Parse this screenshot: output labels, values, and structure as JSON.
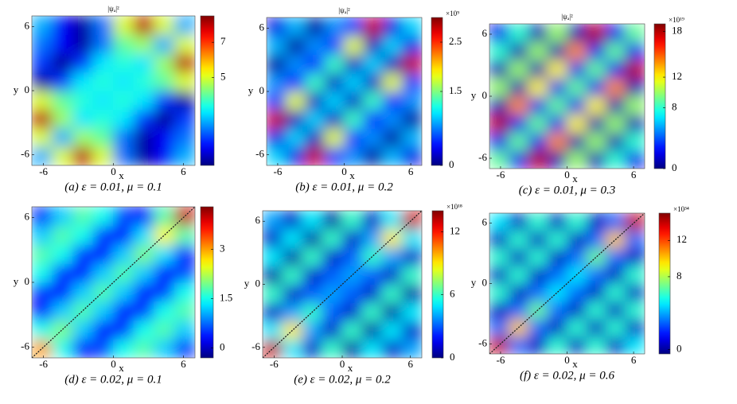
{
  "chart_data": [
    {
      "type": "heatmap",
      "title": "|ψₐ|²",
      "caption": "(a) ε = 0.01,  μ = 0.1",
      "xlabel": "x",
      "ylabel": "y",
      "xlim": [
        -7,
        7
      ],
      "ylim": [
        -7,
        7
      ],
      "xticks": [
        -6,
        0,
        6
      ],
      "yticks": [
        -6,
        0,
        6
      ],
      "colormap": "jet",
      "clim": [
        0,
        8.5
      ],
      "cticks": [
        5,
        7
      ],
      "z": [
        [
          2.5,
          5,
          8,
          5,
          2,
          0.3,
          1,
          2.5
        ],
        [
          5,
          2.5,
          4.5,
          4,
          2,
          0.3,
          1,
          2
        ],
        [
          8,
          4.5,
          3,
          3.5,
          3,
          1.5,
          0.2,
          1.5
        ],
        [
          5,
          4,
          3.5,
          3,
          3.5,
          3,
          1.5,
          0.3
        ],
        [
          0.3,
          1.5,
          3,
          3.5,
          3,
          3.5,
          4,
          5
        ],
        [
          1.5,
          0.2,
          1.5,
          3,
          3.5,
          3,
          4.5,
          8
        ],
        [
          2,
          1,
          0.3,
          2,
          4,
          4.5,
          2.5,
          5
        ],
        [
          2.5,
          1,
          0.3,
          2,
          5,
          8,
          5,
          2.5
        ]
      ]
    },
    {
      "type": "heatmap",
      "title": "|ψₐ|²",
      "caption": "(b) ε = 0.01,  μ = 0.2",
      "xlabel": "x",
      "ylabel": "y",
      "xlim": [
        -7,
        7
      ],
      "ylim": [
        -7,
        7
      ],
      "xticks": [
        -6,
        0,
        6
      ],
      "yticks": [
        -6,
        0,
        6
      ],
      "colormap": "jet",
      "clim": [
        0,
        3
      ],
      "cticks": [
        0,
        1.5,
        2.5
      ],
      "cbar_label": "×10⁹",
      "z": [
        [
          1.0,
          0.3,
          2.8,
          0.5,
          0.8,
          0.1,
          0.9,
          0.3
        ],
        [
          0.3,
          1.0,
          0.2,
          1.8,
          0.5,
          0.8,
          0.1,
          0.9
        ],
        [
          2.8,
          0.2,
          1.0,
          0.2,
          1.3,
          0.4,
          0.8,
          0.1
        ],
        [
          0.5,
          1.8,
          0.2,
          1.0,
          0.2,
          1.3,
          0.4,
          0.8
        ],
        [
          0.8,
          0.4,
          1.3,
          0.2,
          1.0,
          0.2,
          1.8,
          0.5
        ],
        [
          0.1,
          0.8,
          0.4,
          1.3,
          0.2,
          1.0,
          0.2,
          2.8
        ],
        [
          0.9,
          0.1,
          0.8,
          0.5,
          1.8,
          0.2,
          1.0,
          0.3
        ],
        [
          0.3,
          0.9,
          0.1,
          0.8,
          0.5,
          2.8,
          0.3,
          1.0
        ]
      ]
    },
    {
      "type": "heatmap",
      "title": "|ψₐ|²",
      "caption": "(c) ε = 0.01,  μ = 0.3",
      "xlabel": "x",
      "ylabel": "y",
      "xlim": [
        -7,
        7
      ],
      "ylim": [
        -7,
        7
      ],
      "xticks": [
        -6,
        0,
        6
      ],
      "yticks": [
        -6,
        0,
        6
      ],
      "colormap": "jet",
      "clim": [
        0,
        19
      ],
      "cticks": [
        0,
        8,
        12,
        18
      ],
      "cbar_label": "×10¹⁹",
      "z": [
        [
          9,
          2,
          18,
          1,
          10,
          1,
          8,
          2
        ],
        [
          2,
          9,
          2,
          14,
          1,
          10,
          1,
          8
        ],
        [
          18,
          2,
          9,
          2,
          12,
          1,
          10,
          1
        ],
        [
          1,
          14,
          2,
          9,
          2,
          12,
          1,
          10
        ],
        [
          10,
          1,
          12,
          2,
          9,
          2,
          14,
          1
        ],
        [
          1,
          10,
          1,
          12,
          2,
          9,
          2,
          18
        ],
        [
          8,
          1,
          10,
          1,
          14,
          2,
          9,
          2
        ],
        [
          2,
          8,
          1,
          10,
          1,
          18,
          2,
          9
        ]
      ]
    },
    {
      "type": "heatmap",
      "caption": "(d) ε = 0.02,  μ = 0.1",
      "xlabel": "x",
      "ylabel": "y",
      "xlim": [
        -7,
        7
      ],
      "ylim": [
        -7,
        7
      ],
      "xticks": [
        -6,
        0,
        6
      ],
      "yticks": [
        -6,
        0,
        6
      ],
      "colormap": "jet",
      "clim": [
        -0.3,
        4.3
      ],
      "cticks": [
        0,
        1.5,
        3
      ],
      "diagonal_line": true,
      "z": [
        [
          3.0,
          1.5,
          0.3,
          0.6,
          1.5,
          1.8,
          1.2,
          0.5
        ],
        [
          1.5,
          2.0,
          1.2,
          0.3,
          0.5,
          1.5,
          1.8,
          1.2
        ],
        [
          0.3,
          1.2,
          1.8,
          1.2,
          0.3,
          0.5,
          1.5,
          1.8
        ],
        [
          0.5,
          0.3,
          1.2,
          1.8,
          1.2,
          0.3,
          0.5,
          1.5
        ],
        [
          1.5,
          0.5,
          0.3,
          1.2,
          1.8,
          1.2,
          0.3,
          0.6
        ],
        [
          1.8,
          1.5,
          0.5,
          0.3,
          1.2,
          2.0,
          1.3,
          0.3
        ],
        [
          1.2,
          1.8,
          1.5,
          0.5,
          0.3,
          1.3,
          2.6,
          1.8
        ],
        [
          0.5,
          1.2,
          1.8,
          1.5,
          0.6,
          0.3,
          1.8,
          4.0
        ]
      ]
    },
    {
      "type": "heatmap",
      "caption": "(e) ε = 0.02,  μ = 0.2",
      "xlabel": "x",
      "ylabel": "y",
      "xlim": [
        -7,
        7
      ],
      "ylim": [
        -7,
        7
      ],
      "xticks": [
        -6,
        0,
        6
      ],
      "yticks": [
        -6,
        0,
        6
      ],
      "colormap": "jet",
      "clim": [
        0,
        14
      ],
      "cticks": [
        0,
        6,
        12
      ],
      "cbar_label": "×10¹⁸",
      "diagonal_line": true,
      "z": [
        [
          13,
          5,
          1,
          6,
          0.5,
          5,
          1,
          4
        ],
        [
          5,
          9,
          4,
          1,
          6,
          0.5,
          5,
          1
        ],
        [
          1,
          4,
          6,
          3,
          1,
          6,
          0.5,
          5
        ],
        [
          6,
          1,
          3,
          4,
          3,
          1,
          6,
          0.5
        ],
        [
          0.5,
          6,
          1,
          3,
          4,
          3,
          1,
          6
        ],
        [
          5,
          0.5,
          6,
          1,
          3,
          6,
          4,
          1
        ],
        [
          1,
          5,
          0.5,
          6,
          1,
          4,
          9,
          5
        ],
        [
          4,
          1,
          5,
          0.5,
          6,
          1,
          5,
          13
        ]
      ]
    },
    {
      "type": "heatmap",
      "caption": "(f) ε = 0.02,  μ = 0.6",
      "xlabel": "x",
      "ylabel": "y",
      "xlim": [
        -7,
        7
      ],
      "ylim": [
        -7,
        7
      ],
      "xticks": [
        -6,
        0,
        6
      ],
      "yticks": [
        -6,
        0,
        6
      ],
      "colormap": "jet",
      "clim": [
        -0.5,
        15
      ],
      "cticks": [
        0,
        8,
        12
      ],
      "cbar_label": "×10³⁴",
      "diagonal_line": true,
      "z": [
        [
          14,
          3,
          0.5,
          6,
          0.5,
          6,
          0.5,
          5
        ],
        [
          3,
          10,
          3,
          0.5,
          6,
          0.5,
          6,
          0.5
        ],
        [
          0.5,
          3,
          7,
          3,
          0.5,
          6,
          0.5,
          6
        ],
        [
          6,
          0.5,
          3,
          5,
          3,
          0.5,
          6,
          0.5
        ],
        [
          0.5,
          6,
          0.5,
          3,
          5,
          3,
          0.5,
          6
        ],
        [
          6,
          0.5,
          6,
          0.5,
          3,
          7,
          3,
          0.5
        ],
        [
          0.5,
          6,
          0.5,
          6,
          0.5,
          3,
          10,
          3
        ],
        [
          5,
          0.5,
          6,
          0.5,
          6,
          0.5,
          3,
          14
        ]
      ]
    }
  ]
}
